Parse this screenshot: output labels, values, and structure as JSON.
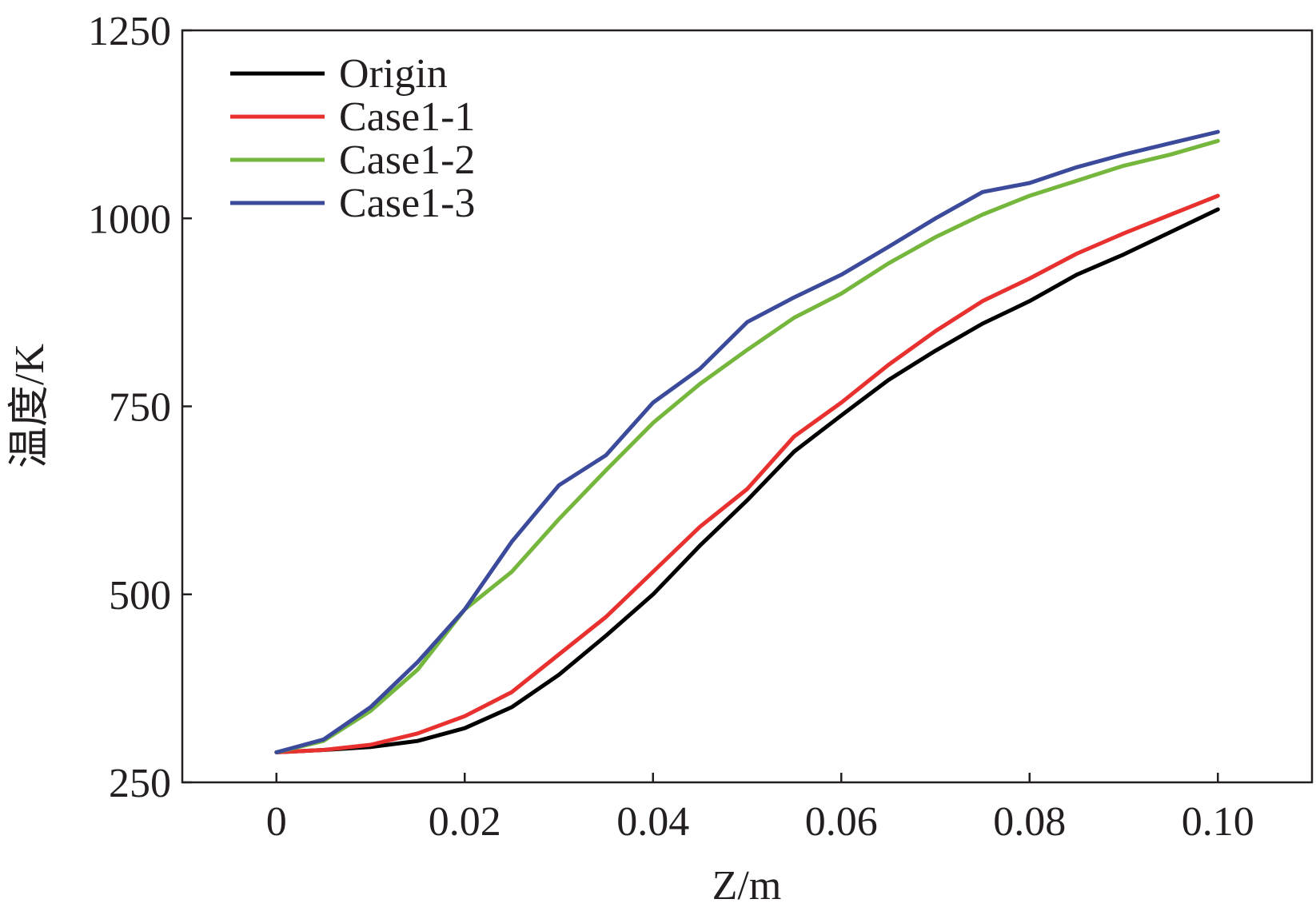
{
  "chart_data": {
    "type": "line",
    "title": "",
    "xlabel": "Z/m",
    "ylabel": "温度/K",
    "xlim": [
      -0.01,
      0.11
    ],
    "ylim": [
      250,
      1250
    ],
    "xticks": [
      0,
      0.02,
      0.04,
      0.06,
      0.08,
      0.1
    ],
    "xtick_labels": [
      "0",
      "0.02",
      "0.04",
      "0.06",
      "0.08",
      "0.10"
    ],
    "yticks": [
      250,
      500,
      750,
      1000,
      1250
    ],
    "ytick_labels": [
      "250",
      "500",
      "750",
      "1000",
      "1250"
    ],
    "grid": false,
    "legend_position": "top-left",
    "x": [
      0,
      0.005,
      0.01,
      0.015,
      0.02,
      0.025,
      0.03,
      0.035,
      0.04,
      0.045,
      0.05,
      0.055,
      0.06,
      0.065,
      0.07,
      0.075,
      0.08,
      0.085,
      0.09,
      0.095,
      0.1
    ],
    "series": [
      {
        "name": "Origin",
        "color": "#000000",
        "values": [
          290,
          293,
          297,
          305,
          322,
          350,
          393,
          445,
          500,
          565,
          625,
          690,
          738,
          785,
          824,
          860,
          890,
          925,
          952,
          982,
          1012
        ]
      },
      {
        "name": "Case1-1",
        "color": "#e8312f",
        "values": [
          290,
          293,
          300,
          315,
          338,
          370,
          420,
          470,
          530,
          590,
          640,
          710,
          755,
          805,
          850,
          890,
          920,
          953,
          980,
          1005,
          1030
        ]
      },
      {
        "name": "Case1-2",
        "color": "#75b63d",
        "values": [
          290,
          305,
          345,
          400,
          480,
          530,
          600,
          665,
          728,
          780,
          825,
          868,
          900,
          940,
          975,
          1005,
          1030,
          1050,
          1070,
          1085,
          1103
        ]
      },
      {
        "name": "Case1-3",
        "color": "#3c4a9b",
        "values": [
          290,
          307,
          350,
          410,
          480,
          570,
          645,
          685,
          755,
          800,
          862,
          895,
          925,
          962,
          1000,
          1035,
          1047,
          1068,
          1085,
          1100,
          1115
        ]
      }
    ]
  }
}
